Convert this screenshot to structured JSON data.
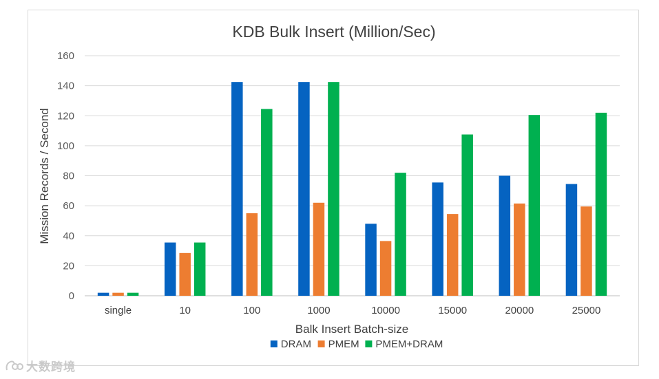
{
  "chart_data": {
    "type": "bar",
    "title": "KDB Bulk Insert (Million/Sec)",
    "xlabel": "Balk Insert Batch-size",
    "ylabel": "Mission Records / Second",
    "ylim": [
      0,
      160
    ],
    "yticks": [
      0,
      20,
      40,
      60,
      80,
      100,
      120,
      140,
      160
    ],
    "grid": true,
    "legend_position": "bottom",
    "categories": [
      "single",
      "10",
      "100",
      "1000",
      "10000",
      "15000",
      "20000",
      "25000"
    ],
    "series": [
      {
        "name": "DRAM",
        "color": "#0563c1",
        "values": [
          2,
          35.5,
          142.5,
          142.5,
          48,
          75.5,
          80,
          74.5
        ]
      },
      {
        "name": "PMEM",
        "color": "#ed7d31",
        "values": [
          2,
          28.5,
          55,
          62,
          36.5,
          54.5,
          61.5,
          59.5
        ]
      },
      {
        "name": "PMEM+DRAM",
        "color": "#00b050",
        "values": [
          2,
          35.5,
          124.5,
          142.5,
          82,
          107.5,
          120.5,
          122
        ]
      }
    ]
  },
  "watermark": {
    "text": "大数跨境"
  }
}
